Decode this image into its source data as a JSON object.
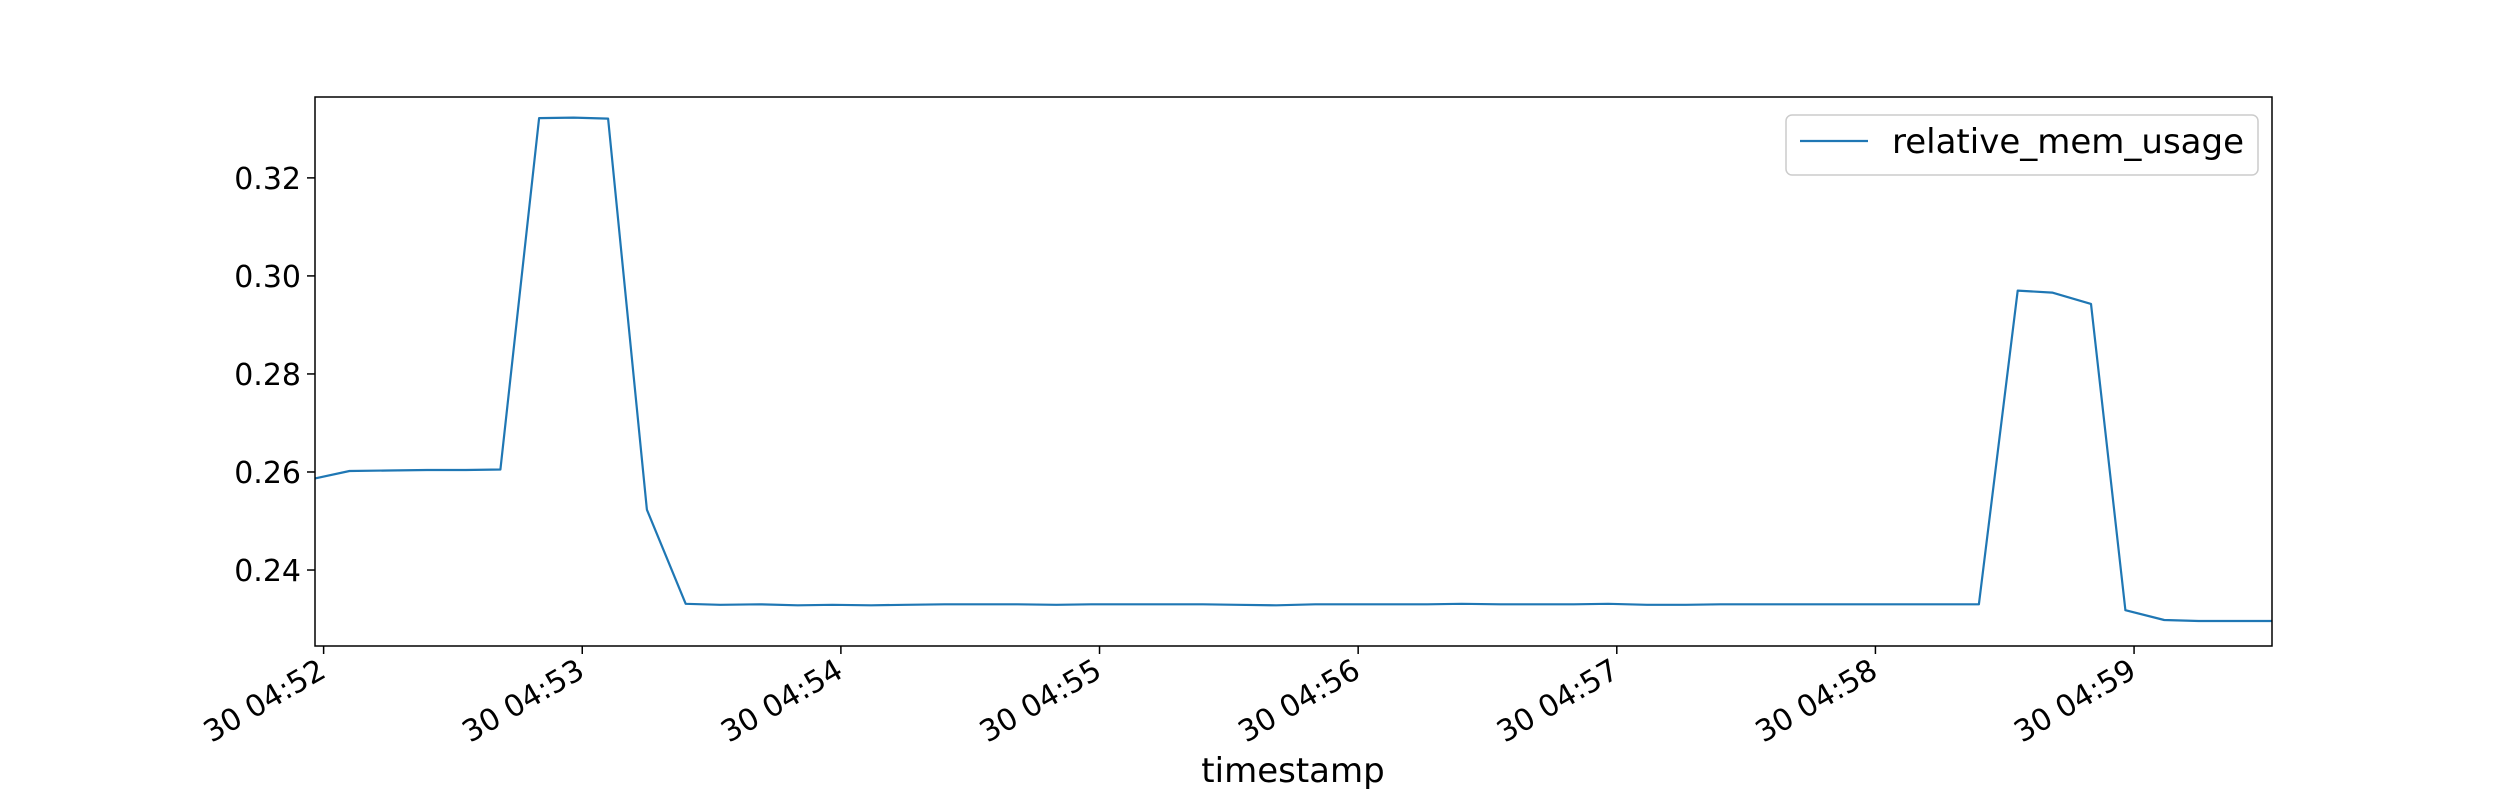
{
  "chart_data": {
    "type": "line",
    "title": "",
    "xlabel": "timestamp",
    "ylabel": "",
    "grid": false,
    "legend_position": "top-right",
    "x_range": [
      "30 04:51:58",
      "30 04:59:32"
    ],
    "ylim": [
      0.2245,
      0.3365
    ],
    "x_ticks": [
      "30 04:52",
      "30 04:53",
      "30 04:54",
      "30 04:55",
      "30 04:56",
      "30 04:57",
      "30 04:58",
      "30 04:59"
    ],
    "y_ticks": [
      "0.24",
      "0.26",
      "0.28",
      "0.30",
      "0.32"
    ],
    "y_tick_values": [
      0.24,
      0.26,
      0.28,
      0.3,
      0.32
    ],
    "colors": {
      "line": "#1f77b4",
      "axes": "#000000",
      "background": "#ffffff"
    },
    "series": [
      {
        "name": "relative_mem_usage",
        "x": [
          "30 04:51:58",
          "30 04:52:06",
          "30 04:52:15",
          "30 04:52:24",
          "30 04:52:33",
          "30 04:52:41",
          "30 04:52:50",
          "30 04:52:58",
          "30 04:53:06",
          "30 04:53:15",
          "30 04:53:24",
          "30 04:53:32",
          "30 04:53:41",
          "30 04:53:50",
          "30 04:53:58",
          "30 04:54:07",
          "30 04:54:15",
          "30 04:54:24",
          "30 04:54:32",
          "30 04:54:41",
          "30 04:54:50",
          "30 04:54:58",
          "30 04:55:07",
          "30 04:55:15",
          "30 04:55:24",
          "30 04:55:32",
          "30 04:55:41",
          "30 04:55:50",
          "30 04:55:58",
          "30 04:56:07",
          "30 04:56:16",
          "30 04:56:24",
          "30 04:56:33",
          "30 04:56:41",
          "30 04:56:50",
          "30 04:56:58",
          "30 04:57:07",
          "30 04:57:16",
          "30 04:57:24",
          "30 04:57:33",
          "30 04:57:41",
          "30 04:57:50",
          "30 04:57:58",
          "30 04:58:07",
          "30 04:58:16",
          "30 04:58:24",
          "30 04:58:33",
          "30 04:58:41",
          "30 04:58:50",
          "30 04:58:58",
          "30 04:59:07",
          "30 04:59:15",
          "30 04:59:24",
          "30 04:59:32"
        ],
        "values": [
          0.2587,
          0.2602,
          0.2603,
          0.2604,
          0.2604,
          0.2605,
          0.3322,
          0.3323,
          0.3321,
          0.2523,
          0.2331,
          0.2329,
          0.233,
          0.2328,
          0.2329,
          0.2328,
          0.2329,
          0.233,
          0.233,
          0.233,
          0.2329,
          0.233,
          0.233,
          0.233,
          0.233,
          0.2329,
          0.2328,
          0.233,
          0.233,
          0.233,
          0.233,
          0.2331,
          0.233,
          0.233,
          0.233,
          0.2331,
          0.2329,
          0.2329,
          0.233,
          0.233,
          0.233,
          0.233,
          0.233,
          0.233,
          0.233,
          0.233,
          0.297,
          0.2966,
          0.2943,
          0.2318,
          0.2298,
          0.2296,
          0.2296,
          0.2296
        ]
      }
    ]
  }
}
